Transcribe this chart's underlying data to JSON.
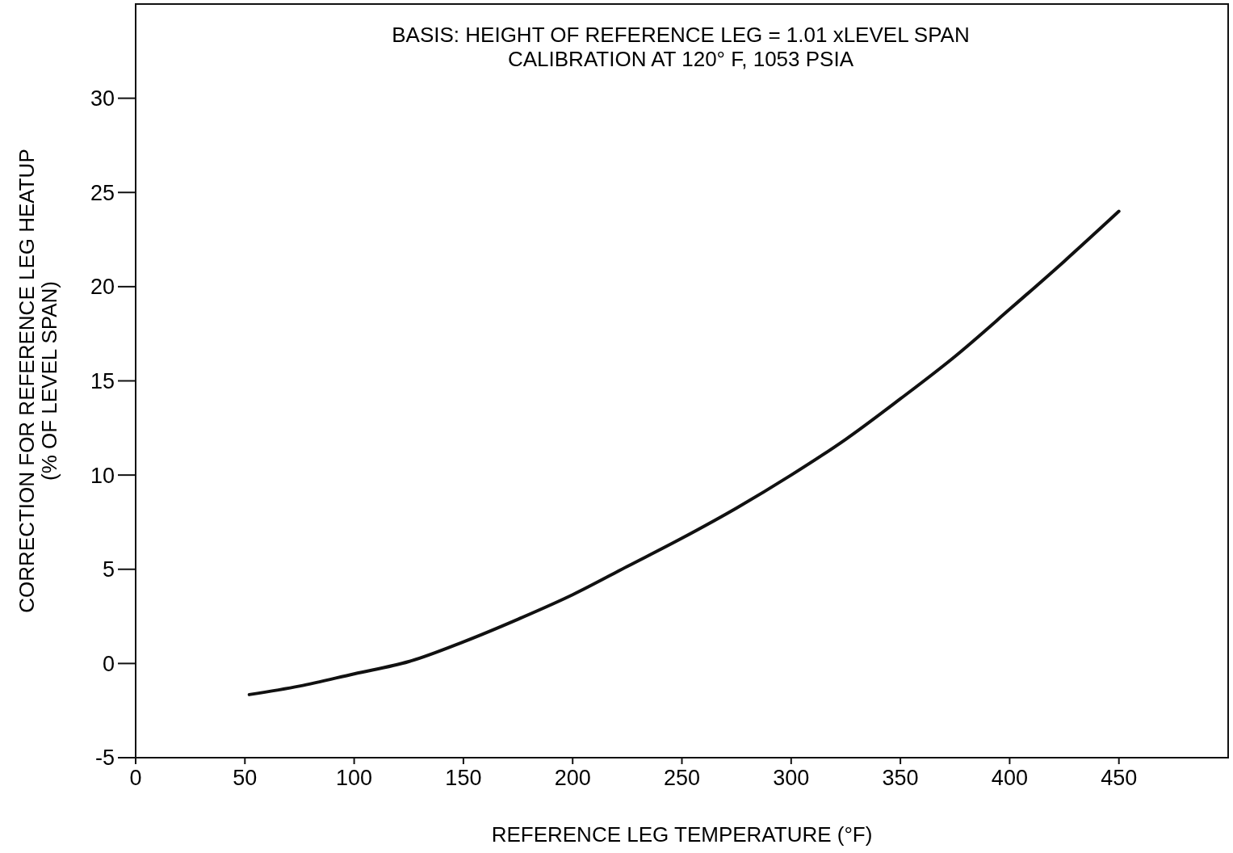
{
  "chart_data": {
    "type": "line",
    "title": "BASIS: HEIGHT OF REFERENCE LEG = 1.01 xLEVEL SPAN\nCALIBRATION AT 120° F, 1053 PSIA",
    "xlabel": "REFERENCE LEG TEMPERATURE (°F)",
    "ylabel": "CORRECTION FOR REFERENCE LEG HEATUP\n(% OF LEVEL SPAN)",
    "x": [
      52,
      75,
      100,
      125,
      150,
      175,
      200,
      225,
      250,
      275,
      300,
      325,
      350,
      375,
      400,
      425,
      450
    ],
    "series": [
      {
        "color": "#111111",
        "values": [
          -1.65,
          -1.2,
          -0.55,
          0.1,
          1.15,
          2.35,
          3.65,
          5.15,
          6.65,
          8.25,
          10.0,
          11.9,
          14.05,
          16.3,
          18.8,
          21.35,
          24.0
        ]
      }
    ],
    "xlim": [
      0,
      500
    ],
    "xticks": [
      0,
      50,
      100,
      150,
      200,
      250,
      300,
      350,
      400,
      450
    ],
    "ylim": [
      -5,
      35
    ],
    "yticks": [
      -5,
      0,
      5,
      10,
      15,
      20,
      25,
      30
    ],
    "grid": false,
    "marker": "none",
    "line_style": "solid"
  }
}
